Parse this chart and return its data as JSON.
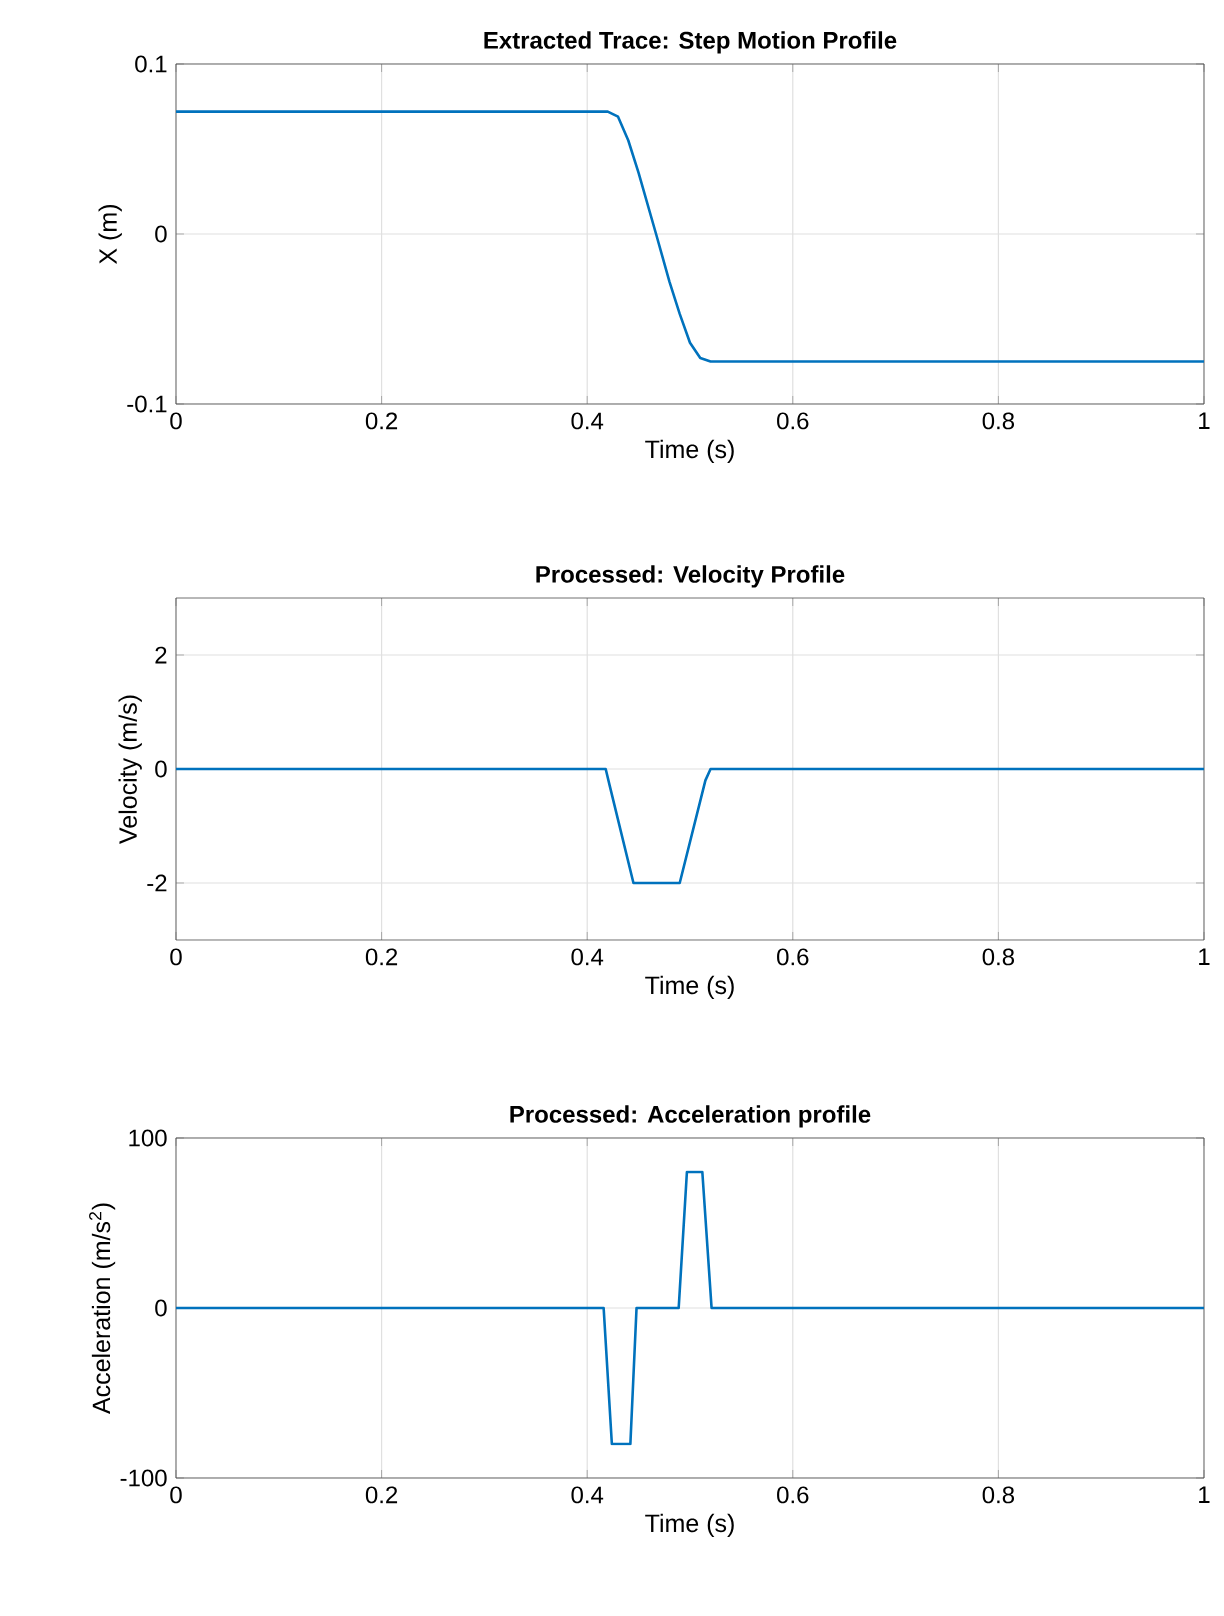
{
  "chart_data": [
    {
      "type": "line",
      "title": "Extracted Trace: Step Motion Profile",
      "xlabel": "Time (s)",
      "ylabel": "X (m)",
      "color": "#0072bd",
      "grid": true,
      "x": [
        0,
        0.42,
        0.43,
        0.44,
        0.45,
        0.467,
        0.48,
        0.49,
        0.5,
        0.51,
        0.52,
        1
      ],
      "values": [
        0.072,
        0.072,
        0.069,
        0.055,
        0.036,
        0,
        -0.028,
        -0.047,
        -0.064,
        -0.073,
        -0.075,
        -0.075
      ],
      "xlim": [
        0,
        1
      ],
      "ylim": [
        -0.1,
        0.1
      ],
      "xticks": [
        0,
        0.2,
        0.4,
        0.6,
        0.8,
        1
      ],
      "yticks": [
        -0.1,
        0,
        0.1
      ]
    },
    {
      "type": "line",
      "title": "Processed: Velocity Profile",
      "xlabel": "Time (s)",
      "ylabel": "Velocity (m/s)",
      "color": "#0072bd",
      "grid": true,
      "x": [
        0,
        0.418,
        0.422,
        0.445,
        0.49,
        0.515,
        0.52,
        1
      ],
      "values": [
        0,
        0,
        -0.3,
        -2,
        -2,
        -0.2,
        0,
        0
      ],
      "xlim": [
        0,
        1
      ],
      "ylim": [
        -3,
        3
      ],
      "xticks": [
        0,
        0.2,
        0.4,
        0.6,
        0.8,
        1
      ],
      "yticks": [
        -2,
        0,
        2
      ]
    },
    {
      "type": "line",
      "title": "Processed: Acceleration profile",
      "xlabel": "Time (s)",
      "ylabel": "Acceleration (m/s$^{2}$)",
      "color": "#0072bd",
      "grid": true,
      "x": [
        0,
        0.416,
        0.424,
        0.442,
        0.448,
        0.489,
        0.497,
        0.512,
        0.521,
        1
      ],
      "values": [
        0,
        0,
        -80,
        -80,
        0,
        0,
        80,
        80,
        0,
        0
      ],
      "xlim": [
        0,
        1
      ],
      "ylim": [
        -100,
        100
      ],
      "xticks": [
        0,
        0.2,
        0.4,
        0.6,
        0.8,
        1
      ],
      "yticks": [
        -100,
        0,
        100
      ]
    }
  ]
}
